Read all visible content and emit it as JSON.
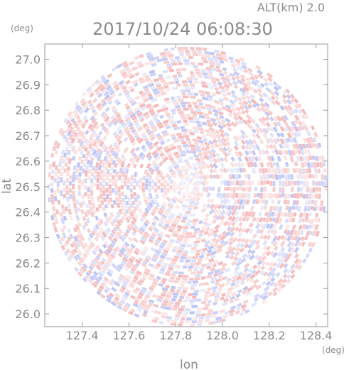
{
  "header": {
    "altitude_label": "ALT(km)  2.0",
    "datetime": "2017/10/24 06:08:30",
    "lat_unit": "(deg)",
    "lon_unit": "(deg)"
  },
  "chart_data": {
    "type": "heatmap",
    "title": "2017/10/24 06:08:30",
    "xlabel": "lon",
    "ylabel": "lat",
    "xlim": [
      127.24,
      128.45
    ],
    "ylim": [
      25.95,
      27.06
    ],
    "x_ticks": [
      "127.4",
      "127.6",
      "127.8",
      "128.0",
      "128.2",
      "128.4"
    ],
    "y_ticks": [
      "26.0",
      "26.1",
      "26.2",
      "26.3",
      "26.4",
      "26.5",
      "26.6",
      "26.7",
      "26.8",
      "26.9",
      "27.0"
    ],
    "center": {
      "lon": 127.85,
      "lat": 26.5
    },
    "colors": {
      "positive": "#f2a5a5",
      "negative": "#aab4f2",
      "neutral": "#ffffff",
      "axis": "#999999"
    },
    "grid": false,
    "legend": "none"
  }
}
